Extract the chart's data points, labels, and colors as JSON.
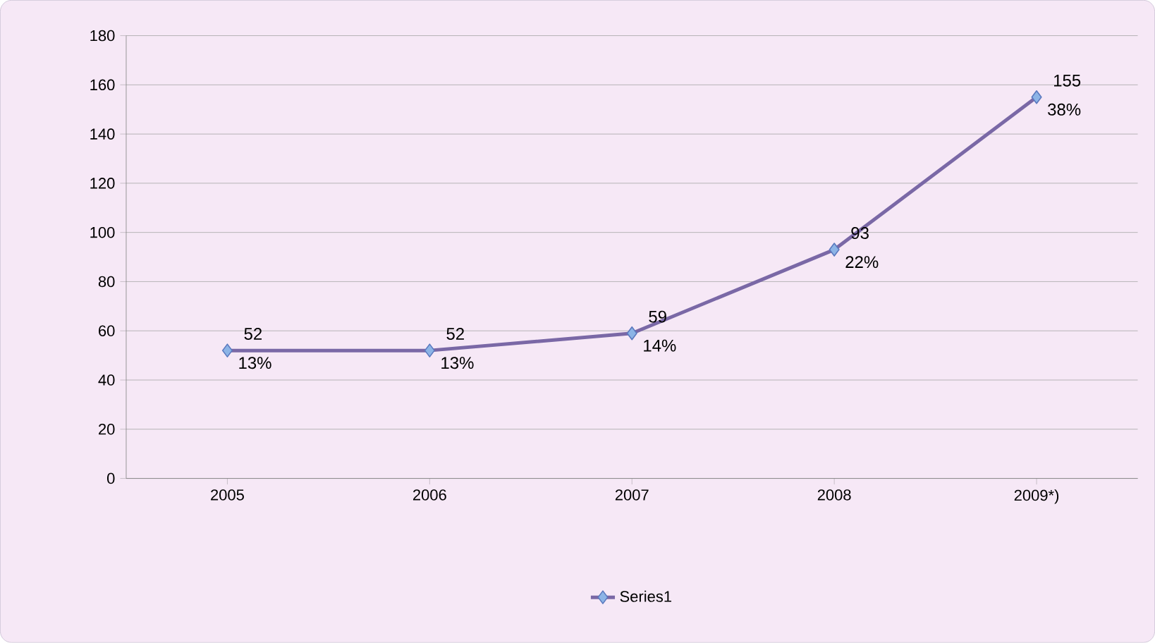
{
  "chart_data": {
    "type": "line",
    "categories": [
      "2005",
      "2006",
      "2007",
      "2008",
      "2009*)"
    ],
    "series": [
      {
        "name": "Series1",
        "color": "#7a68a6",
        "values": [
          52,
          52,
          59,
          93,
          155
        ],
        "value_labels": [
          "52",
          "52",
          "59",
          "93",
          "155"
        ]
      }
    ],
    "annotations": [
      {
        "text": "13%",
        "x": "2005",
        "y": 52
      },
      {
        "text": "13%",
        "x": "2006",
        "y": 52
      },
      {
        "text": "14%",
        "x": "2007",
        "y": 59
      },
      {
        "text": "22%",
        "x": "2008",
        "y": 93
      },
      {
        "text": "38%",
        "x": "2009*)",
        "y": 155
      }
    ],
    "ylim": [
      0,
      180
    ],
    "yticks": [
      0,
      20,
      40,
      60,
      80,
      100,
      120,
      140,
      160,
      180
    ],
    "grid": "y",
    "legend": "bottom",
    "marker": "diamond",
    "line_style": "solid"
  }
}
